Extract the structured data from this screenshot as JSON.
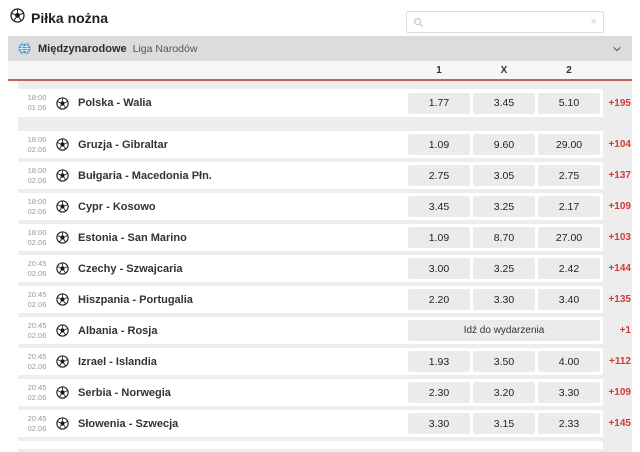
{
  "header": {
    "title": "Piłka nożna"
  },
  "search": {
    "placeholder": ""
  },
  "league_bar": {
    "category": "Międzynarodowe",
    "league": "Liga Narodów"
  },
  "columns": [
    "1",
    "X",
    "2"
  ],
  "colors": {
    "accent-red": "#d63a36",
    "divider-red": "#c2625a",
    "bar-bg": "#dcdcdc",
    "list-bg": "#ededed",
    "button-bg": "#ebebeb",
    "globe-blue": "#3d9bd6"
  },
  "matches": [
    {
      "time": "18:00",
      "date": "01.06",
      "name": "Polska - Walia",
      "odds": [
        "1.77",
        "3.45",
        "5.10"
      ],
      "boost": "+195",
      "group_end": true
    },
    {
      "time": "18:00",
      "date": "02.06",
      "name": "Gruzja - Gibraltar",
      "odds": [
        "1.09",
        "9.60",
        "29.00"
      ],
      "boost": "+104"
    },
    {
      "time": "18:00",
      "date": "02.06",
      "name": "Bułgaria - Macedonia Płn.",
      "odds": [
        "2.75",
        "3.05",
        "2.75"
      ],
      "boost": "+137"
    },
    {
      "time": "18:00",
      "date": "02.06",
      "name": "Cypr - Kosowo",
      "odds": [
        "3.45",
        "3.25",
        "2.17"
      ],
      "boost": "+109"
    },
    {
      "time": "18:00",
      "date": "02.06",
      "name": "Estonia - San Marino",
      "odds": [
        "1.09",
        "8.70",
        "27.00"
      ],
      "boost": "+103"
    },
    {
      "time": "20:45",
      "date": "02.06",
      "name": "Czechy - Szwajcaria",
      "odds": [
        "3.00",
        "3.25",
        "2.42"
      ],
      "boost": "+144"
    },
    {
      "time": "20:45",
      "date": "02.06",
      "name": "Hiszpania - Portugalia",
      "odds": [
        "2.20",
        "3.30",
        "3.40"
      ],
      "boost": "+135"
    },
    {
      "time": "20:45",
      "date": "02.06",
      "name": "Albania - Rosja",
      "odds": null,
      "event_button": "Idź do wydarzenia",
      "boost": "+1"
    },
    {
      "time": "20:45",
      "date": "02.06",
      "name": "Izrael - Islandia",
      "odds": [
        "1.93",
        "3.50",
        "4.00"
      ],
      "boost": "+112"
    },
    {
      "time": "20:45",
      "date": "02.06",
      "name": "Serbia - Norwegia",
      "odds": [
        "2.30",
        "3.20",
        "3.30"
      ],
      "boost": "+109"
    },
    {
      "time": "20:45",
      "date": "02.06",
      "name": "Słowenia - Szwecja",
      "odds": [
        "3.30",
        "3.15",
        "2.33"
      ],
      "boost": "+145"
    }
  ]
}
